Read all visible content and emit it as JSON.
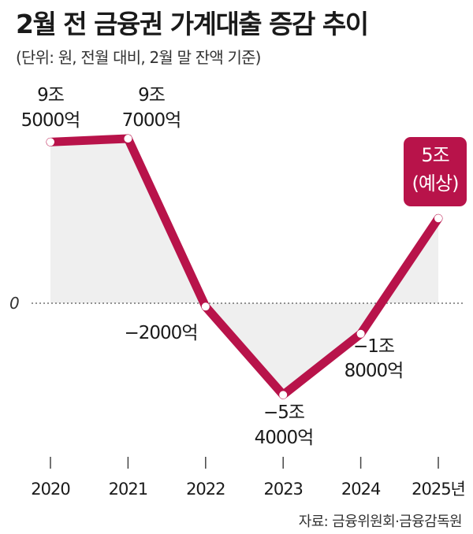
{
  "title": "2월 전 금융권 가계대출 증감 추이",
  "subtitle": "(단위: 원, 전월 대비, 2월 말 잔액 기준)",
  "source": "자료: 금융위원회·금융감독원",
  "chart_data": {
    "type": "line",
    "title": "2월 전 금융권 가계대출 증감 추이",
    "ylabel": "",
    "xlabel": "",
    "zero_label": "0",
    "x": [
      "2020",
      "2021",
      "2022",
      "2023",
      "2024",
      "2025년"
    ],
    "series": [
      {
        "values": [
          95000,
          97000,
          -2000,
          -54000,
          -18000,
          50000
        ],
        "labels": [
          [
            "9조",
            "5000억"
          ],
          [
            "9조",
            "7000억"
          ],
          [
            "−2000억"
          ],
          [
            "−5조",
            "4000억"
          ],
          [
            "−1조",
            "8000억"
          ],
          [
            "5조",
            "(예상)"
          ]
        ],
        "projected_last": true
      }
    ],
    "unit": "억원",
    "grid": false,
    "line_color": "#b8134a",
    "fill_color": "#efefef",
    "highlight_color": "#b8134a"
  }
}
